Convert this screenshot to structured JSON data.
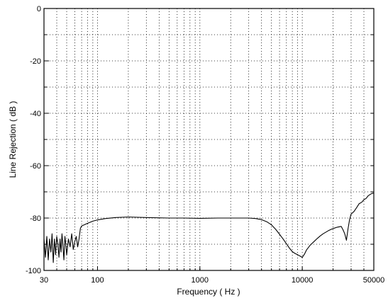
{
  "chart_data": {
    "type": "line",
    "xlabel": "Frequency ( Hz )",
    "ylabel": "Line Rejection ( dB )",
    "x_scale": "log",
    "xlim": [
      30,
      50000
    ],
    "ylim": [
      -100,
      0
    ],
    "x_ticks": [
      30,
      100,
      1000,
      10000,
      50000
    ],
    "x_tick_labels": [
      "30",
      "100",
      "1000",
      "10000",
      "50000"
    ],
    "y_ticks": [
      0,
      -20,
      -40,
      -60,
      -80,
      -100
    ],
    "y_tick_labels": [
      "0",
      "-20",
      "-40",
      "-60",
      "-80",
      "-100"
    ],
    "grid": true,
    "series": [
      {
        "x": [
          30,
          31,
          32,
          33,
          34,
          35,
          36,
          37,
          38,
          39,
          40,
          41,
          42,
          43,
          44,
          45,
          46,
          47,
          48,
          49,
          50,
          52,
          54,
          56,
          58,
          60,
          62,
          64,
          66,
          68,
          70,
          75,
          80,
          90,
          100,
          120,
          150,
          200,
          300,
          500,
          700,
          1000,
          1500,
          2000,
          3000,
          3500,
          4000,
          4500,
          5000,
          5500,
          6000,
          6500,
          7000,
          7500,
          8000,
          8500,
          9000,
          9500,
          10000,
          10500,
          11000,
          12000,
          13000,
          14000,
          15000,
          16000,
          18000,
          20000,
          22000,
          24000,
          25000,
          26000,
          27000,
          28000,
          29000,
          30000,
          32000,
          34000,
          36000,
          38000,
          40000,
          42000,
          44000,
          46000,
          48000,
          50000
        ],
        "y": [
          -88,
          -95,
          -87,
          -96,
          -88,
          -93,
          -86,
          -97,
          -88,
          -94,
          -87,
          -90,
          -95,
          -88,
          -93,
          -86,
          -91,
          -96,
          -87,
          -90,
          -94,
          -88,
          -91,
          -86,
          -92,
          -89,
          -87,
          -91,
          -88,
          -84,
          -83,
          -82.5,
          -82,
          -81.2,
          -80.7,
          -80.2,
          -79.8,
          -79.6,
          -79.8,
          -80,
          -80,
          -80.1,
          -80,
          -80,
          -80,
          -80.2,
          -80.6,
          -81.4,
          -82.6,
          -84.3,
          -86.2,
          -88,
          -89.8,
          -91.5,
          -92.8,
          -93.5,
          -94,
          -94.5,
          -95,
          -93.8,
          -92.2,
          -90.3,
          -89,
          -87.8,
          -86.8,
          -86,
          -84.8,
          -84,
          -83.5,
          -83.2,
          -84.5,
          -86,
          -88.5,
          -84,
          -80.5,
          -78.5,
          -77.5,
          -76,
          -74.5,
          -74,
          -73,
          -72.5,
          -71.5,
          -71,
          -70.6,
          -70.5
        ]
      }
    ]
  }
}
